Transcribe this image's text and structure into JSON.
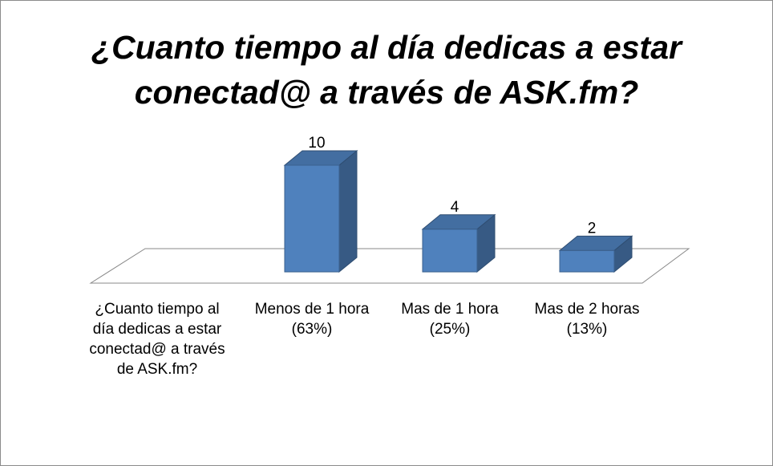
{
  "chart_data": {
    "type": "bar3d",
    "title": "¿Cuanto tiempo al día dedicas a estar conectad@ a través de ASK.fm?",
    "categories": [
      "¿Cuanto tiempo al día dedicas a estar conectad@ a través de ASK.fm?",
      "Menos de 1 hora (63%)",
      "Mas de 1 hora (25%)",
      "Mas de 2 horas (13%)"
    ],
    "values": [
      null,
      10,
      4,
      2
    ],
    "color": "#4f81bd"
  }
}
